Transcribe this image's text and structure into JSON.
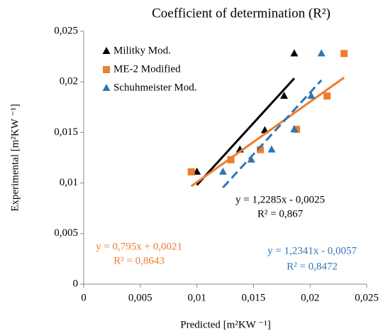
{
  "chart_data": {
    "type": "scatter",
    "title": "Coefficient of determination (R²)",
    "x_label": "Predicted [m²KW ⁻¹]",
    "y_label": "Experimental [m²KW ⁻¹]",
    "xlim": [
      0,
      0.025
    ],
    "ylim": [
      0,
      0.025
    ],
    "xticks": [
      0,
      {
        "value": 0.005,
        "label": "0,005"
      },
      {
        "value": 0.01,
        "label": "0,01"
      },
      {
        "value": 0.015,
        "label": "0,015"
      },
      {
        "value": 0.02,
        "label": "0,02"
      },
      {
        "value": 0.025,
        "label": "0,025"
      }
    ],
    "yticks": [
      0,
      {
        "value": 0.005,
        "label": "0,005"
      },
      {
        "value": 0.01,
        "label": "0,01"
      },
      {
        "value": 0.015,
        "label": "0,015"
      },
      {
        "value": 0.02,
        "label": "0,02"
      },
      {
        "value": 0.025,
        "label": "0,025"
      }
    ],
    "legend": "top-left",
    "series": [
      {
        "name": "Militky Mod.",
        "color": "#000000",
        "marker": "triangle",
        "trendline": "solid",
        "x": [
          0.01,
          0.0138,
          0.016,
          0.0177,
          0.0186
        ],
        "values": [
          0.0111,
          0.0133,
          0.0152,
          0.0186,
          0.0228
        ]
      },
      {
        "name": "ME-2 Modified",
        "color": "#ed7d31",
        "marker": "square",
        "trendline": "solid",
        "x": [
          0.0095,
          0.013,
          0.0156,
          0.0188,
          0.0215,
          0.023
        ],
        "values": [
          0.0111,
          0.0123,
          0.0133,
          0.0153,
          0.0186,
          0.0228
        ]
      },
      {
        "name": "Schuhmeister Mod.",
        "color": "#2e75b6",
        "marker": "triangle",
        "trendline": "dashed",
        "x": [
          0.0123,
          0.0148,
          0.0166,
          0.0186,
          0.0201,
          0.021
        ],
        "values": [
          0.0111,
          0.0123,
          0.0133,
          0.0153,
          0.0186,
          0.0228
        ]
      }
    ],
    "annotations": [
      {
        "text": "y = 1,2285x - 0,0025",
        "color": "#000000"
      },
      {
        "text": "R² = 0,867",
        "color": "#000000"
      },
      {
        "text": "y = 0,795x + 0,0021",
        "color": "#ed7d31"
      },
      {
        "text": "R² = 0,8643",
        "color": "#ed7d31"
      },
      {
        "text": "y = 1,2341x - 0,0057",
        "color": "#2e75b6"
      },
      {
        "text": "R² = 0,8472",
        "color": "#2e75b6"
      }
    ]
  }
}
